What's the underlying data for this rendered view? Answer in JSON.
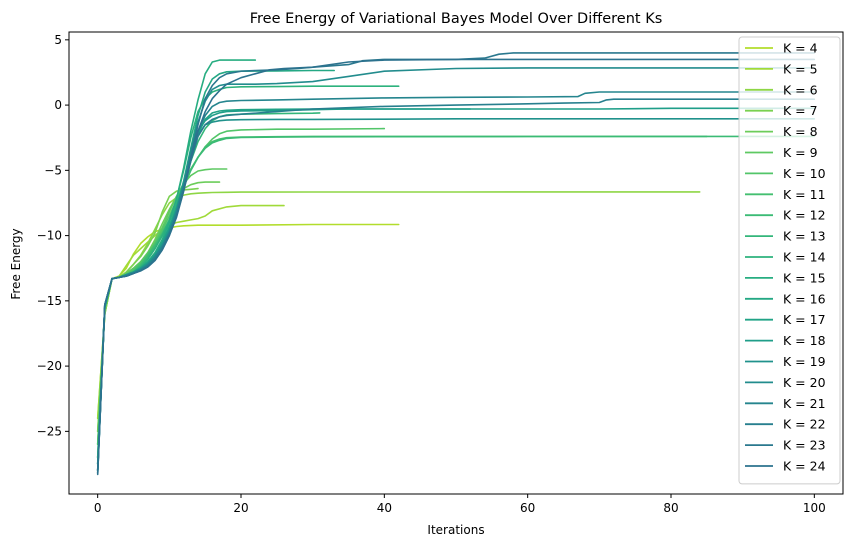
{
  "chart_data": {
    "type": "line",
    "title": "Free Energy of Variational Bayes Model Over Different Ks",
    "xlabel": "Iterations",
    "ylabel": "Free Energy",
    "xlim": [
      -4,
      104
    ],
    "ylim": [
      -29.8,
      5.6
    ],
    "xticks": [
      0,
      20,
      40,
      60,
      80,
      100
    ],
    "yticks": [
      5,
      0,
      -5,
      -10,
      -15,
      -20,
      -25
    ],
    "ytick_labels": [
      "5",
      "0",
      "−5",
      "−10",
      "−15",
      "−20",
      "−25"
    ],
    "grid": false,
    "legend_position": "top-right",
    "series": [
      {
        "name": "K = 4",
        "color": "#b2dd2c",
        "x": [
          0,
          1,
          2,
          3,
          4,
          5,
          6,
          7,
          8,
          9,
          10,
          11,
          12,
          14,
          16,
          20,
          30,
          42
        ],
        "y": [
          -24,
          -16,
          -13.3,
          -13.1,
          -12.5,
          -11.4,
          -10.6,
          -10.1,
          -9.7,
          -9.5,
          -9.4,
          -9.3,
          -9.25,
          -9.2,
          -9.2,
          -9.2,
          -9.15,
          -9.15
        ]
      },
      {
        "name": "K = 5",
        "color": "#a0da39",
        "x": [
          0,
          1,
          2,
          3,
          4,
          5,
          6,
          7,
          8,
          9,
          10,
          11,
          12,
          13,
          14,
          15,
          16,
          18,
          20,
          22,
          26
        ],
        "y": [
          -24,
          -16,
          -13.3,
          -13.1,
          -12.3,
          -11.5,
          -11,
          -10.5,
          -10,
          -9.5,
          -9.2,
          -9,
          -8.9,
          -8.8,
          -8.7,
          -8.5,
          -8.1,
          -7.8,
          -7.7,
          -7.7,
          -7.7
        ]
      },
      {
        "name": "K = 6",
        "color": "#8ed645",
        "x": [
          0,
          1,
          2,
          3,
          4,
          5,
          6,
          7,
          8,
          9,
          10,
          11,
          12,
          13,
          14,
          15,
          16,
          18,
          20,
          30,
          50,
          70,
          84
        ],
        "y": [
          -25,
          -16,
          -13.3,
          -13.2,
          -12.8,
          -12.2,
          -11.5,
          -10.6,
          -9.5,
          -8.4,
          -7.5,
          -7.1,
          -6.9,
          -6.8,
          -6.75,
          -6.72,
          -6.7,
          -6.68,
          -6.67,
          -6.66,
          -6.66,
          -6.65,
          -6.65
        ]
      },
      {
        "name": "K = 7",
        "color": "#7ad151",
        "x": [
          0,
          1,
          2,
          3,
          4,
          5,
          6,
          7,
          8,
          9,
          10,
          11,
          12,
          13,
          14
        ],
        "y": [
          -25,
          -16,
          -13.3,
          -13.2,
          -12.8,
          -12.2,
          -11.6,
          -10.8,
          -9.8,
          -8.2,
          -7,
          -6.6,
          -6.5,
          -6.45,
          -6.4
        ]
      },
      {
        "name": "K = 8",
        "color": "#6ccd5a",
        "x": [
          0,
          1,
          2,
          3,
          4,
          5,
          6,
          7,
          8,
          9,
          10,
          11,
          12,
          13,
          14,
          15,
          16,
          17
        ],
        "y": [
          -26,
          -15.5,
          -13.3,
          -13.2,
          -12.9,
          -12.5,
          -12,
          -11.3,
          -10.3,
          -9.1,
          -8,
          -7,
          -6.4,
          -6.1,
          -5.95,
          -5.9,
          -5.9,
          -5.9
        ]
      },
      {
        "name": "K = 9",
        "color": "#5ec962",
        "x": [
          0,
          1,
          2,
          3,
          4,
          5,
          6,
          7,
          8,
          9,
          10,
          11,
          12,
          13,
          14,
          15,
          16,
          17,
          18
        ],
        "y": [
          -26,
          -15.5,
          -13.3,
          -13.2,
          -12.9,
          -12.5,
          -12,
          -11.3,
          -10.5,
          -9.4,
          -8.2,
          -7,
          -6,
          -5.4,
          -5.05,
          -4.95,
          -4.9,
          -4.9,
          -4.9
        ]
      },
      {
        "name": "K = 10",
        "color": "#52c569",
        "x": [
          0,
          1,
          2,
          3,
          4,
          5,
          6,
          7,
          8,
          9,
          10,
          11,
          12,
          13,
          14,
          15,
          16,
          17,
          18,
          20,
          25,
          30,
          40
        ],
        "y": [
          -26,
          -15.5,
          -13.3,
          -13.2,
          -13,
          -12.6,
          -12.1,
          -11.4,
          -10.6,
          -9.6,
          -8.5,
          -7.3,
          -6,
          -4.9,
          -4,
          -3.2,
          -2.6,
          -2.2,
          -2,
          -1.9,
          -1.85,
          -1.85,
          -1.8
        ]
      },
      {
        "name": "K = 11",
        "color": "#44bf70",
        "x": [
          0,
          1,
          2,
          3,
          4,
          5,
          6,
          7,
          8,
          9,
          10,
          11,
          12,
          13,
          14,
          15,
          16,
          17,
          18,
          20,
          25,
          30,
          40,
          60,
          85
        ],
        "y": [
          -27,
          -15.5,
          -13.3,
          -13.2,
          -13,
          -12.7,
          -12.2,
          -11.5,
          -10.7,
          -9.8,
          -8.8,
          -7.6,
          -6.2,
          -5,
          -4,
          -3.2,
          -2.8,
          -2.6,
          -2.5,
          -2.45,
          -2.42,
          -2.4,
          -2.4,
          -2.4,
          -2.4
        ]
      },
      {
        "name": "K = 12",
        "color": "#3bbb75",
        "x": [
          0,
          1,
          2,
          3,
          4,
          5,
          6,
          7,
          8,
          9,
          10,
          11,
          12,
          13,
          14,
          15,
          16,
          17,
          18,
          20,
          25,
          30,
          40,
          60,
          80,
          100
        ],
        "y": [
          -27,
          -15.5,
          -13.3,
          -13.2,
          -13,
          -12.8,
          -12.3,
          -11.6,
          -10.8,
          -9.9,
          -8.9,
          -7.7,
          -6.3,
          -5,
          -4,
          -3.3,
          -2.9,
          -2.7,
          -2.55,
          -2.48,
          -2.45,
          -2.43,
          -2.42,
          -2.41,
          -2.4,
          -2.4
        ]
      },
      {
        "name": "K = 13",
        "color": "#33b67a",
        "x": [
          0,
          1,
          2,
          3,
          4,
          5,
          6,
          7,
          8,
          9,
          10,
          11,
          12,
          13,
          14,
          15,
          16,
          17,
          18,
          20,
          25,
          30,
          31
        ],
        "y": [
          -27,
          -15.5,
          -13.3,
          -13.2,
          -13,
          -12.8,
          -12.4,
          -11.8,
          -11,
          -10,
          -8.9,
          -7.6,
          -6,
          -4.3,
          -2.8,
          -1.8,
          -1.2,
          -0.9,
          -0.75,
          -0.7,
          -0.65,
          -0.62,
          -0.6
        ]
      },
      {
        "name": "K = 14",
        "color": "#2db27d",
        "x": [
          0,
          1,
          2,
          3,
          4,
          5,
          6,
          7,
          8,
          9,
          10,
          11,
          12,
          13,
          14,
          15,
          16,
          17,
          18,
          20,
          25,
          30,
          40,
          42
        ],
        "y": [
          -27.5,
          -15.5,
          -13.3,
          -13.2,
          -13,
          -12.8,
          -12.4,
          -11.8,
          -11,
          -10,
          -8.8,
          -7.2,
          -5,
          -2.5,
          -0.5,
          0.5,
          1,
          1.2,
          1.35,
          1.4,
          1.42,
          1.45,
          1.45,
          1.45
        ]
      },
      {
        "name": "K = 15",
        "color": "#27ad81",
        "x": [
          0,
          1,
          2,
          3,
          4,
          5,
          6,
          7,
          8,
          9,
          10,
          11,
          12,
          13,
          14,
          15,
          16,
          17,
          18,
          20,
          22
        ],
        "y": [
          -27.5,
          -15.5,
          -13.3,
          -13.2,
          -13,
          -12.8,
          -12.5,
          -12,
          -11.3,
          -10.3,
          -9,
          -7.2,
          -4.8,
          -2,
          0.4,
          2.4,
          3.3,
          3.45,
          3.45,
          3.45,
          3.45
        ]
      },
      {
        "name": "K = 16",
        "color": "#24a884",
        "x": [
          0,
          1,
          2,
          3,
          4,
          5,
          6,
          7,
          8,
          9,
          10,
          11,
          12,
          13,
          14,
          15,
          16,
          17,
          18,
          20,
          25,
          30,
          33
        ],
        "y": [
          -27.5,
          -15.5,
          -13.3,
          -13.2,
          -13,
          -12.8,
          -12.5,
          -12,
          -11.4,
          -10.5,
          -9.3,
          -7.8,
          -5.8,
          -3.3,
          -0.8,
          1,
          2,
          2.4,
          2.55,
          2.6,
          2.62,
          2.65,
          2.65
        ]
      },
      {
        "name": "K = 17",
        "color": "#21a386",
        "x": [
          0,
          1,
          2,
          3,
          4,
          5,
          6,
          7,
          8,
          9,
          10,
          11,
          12,
          13,
          14,
          15,
          16,
          17,
          18,
          20,
          25,
          30,
          40,
          52
        ],
        "y": [
          -28,
          -15.5,
          -13.3,
          -13.2,
          -13,
          -12.8,
          -12.5,
          -12.1,
          -11.5,
          -10.6,
          -9.4,
          -8,
          -6.1,
          -4,
          -2.2,
          -1.1,
          -0.6,
          -0.45,
          -0.4,
          -0.35,
          -0.32,
          -0.3,
          -0.3,
          -0.3
        ]
      },
      {
        "name": "K = 18",
        "color": "#1f9e89",
        "x": [
          0,
          1,
          2,
          3,
          4,
          5,
          6,
          7,
          8,
          9,
          10,
          11,
          12,
          13,
          14,
          15,
          16,
          17,
          18,
          20,
          25,
          30,
          35,
          40,
          50,
          60,
          70,
          80,
          90,
          100
        ],
        "y": [
          -28,
          -15.5,
          -13.3,
          -13.2,
          -13,
          -12.8,
          -12.5,
          -12.1,
          -11.5,
          -10.6,
          -9.5,
          -8,
          -6,
          -3.8,
          -2,
          -1.2,
          -0.8,
          -0.6,
          -0.5,
          -0.45,
          -0.42,
          -0.35,
          -0.3,
          -0.3,
          -0.3,
          -0.3,
          -0.3,
          -0.25,
          -0.25,
          -0.25
        ]
      },
      {
        "name": "K = 19",
        "color": "#20928c",
        "x": [
          0,
          1,
          2,
          3,
          4,
          5,
          6,
          7,
          8,
          9,
          10,
          11,
          12,
          13,
          14,
          15,
          16,
          17,
          18,
          20,
          25,
          30,
          40,
          50,
          60,
          70,
          80,
          90,
          100
        ],
        "y": [
          -28,
          -15.3,
          -13.3,
          -13.2,
          -13,
          -12.8,
          -12.6,
          -12.2,
          -11.6,
          -10.8,
          -9.7,
          -8.2,
          -6.2,
          -4,
          -2.3,
          -1.5,
          -1.3,
          -1.2,
          -1.15,
          -1.12,
          -1.1,
          -1.1,
          -1.08,
          -1.05,
          -1.05,
          -1.05,
          -1.05,
          -1.05,
          -1.05
        ]
      },
      {
        "name": "K = 20",
        "color": "#228c8d",
        "x": [
          0,
          1,
          2,
          3,
          4,
          5,
          6,
          7,
          8,
          9,
          10,
          11,
          12,
          13,
          14,
          15,
          16,
          17,
          18,
          20,
          22,
          25,
          30,
          35,
          40,
          50,
          60,
          70,
          80,
          90,
          100
        ],
        "y": [
          -28,
          -15.3,
          -13.3,
          -13.2,
          -13.1,
          -12.9,
          -12.6,
          -12.2,
          -11.6,
          -10.8,
          -9.7,
          -8.1,
          -6,
          -3.5,
          -1.3,
          0.3,
          1.2,
          1.5,
          1.6,
          1.6,
          1.6,
          1.65,
          1.8,
          2.2,
          2.6,
          2.8,
          2.85,
          2.85,
          2.85,
          2.85,
          2.85
        ]
      },
      {
        "name": "K = 21",
        "color": "#25858e",
        "x": [
          0,
          1,
          2,
          3,
          4,
          5,
          6,
          7,
          8,
          9,
          10,
          11,
          12,
          13,
          14,
          15,
          16,
          17,
          18,
          20,
          25,
          30,
          40,
          50,
          60,
          67,
          68,
          70,
          80,
          90,
          100
        ],
        "y": [
          -28,
          -15.3,
          -13.3,
          -13.2,
          -13.1,
          -12.9,
          -12.6,
          -12.3,
          -11.7,
          -10.9,
          -9.8,
          -8.3,
          -6.3,
          -4,
          -2,
          -0.8,
          -0.1,
          0.2,
          0.3,
          0.35,
          0.4,
          0.45,
          0.55,
          0.6,
          0.62,
          0.65,
          0.9,
          1,
          1,
          1,
          1
        ]
      },
      {
        "name": "K = 22",
        "color": "#277f8e",
        "x": [
          0,
          1,
          2,
          3,
          4,
          5,
          6,
          7,
          8,
          9,
          10,
          11,
          12,
          13,
          14,
          15,
          16,
          17,
          18,
          20,
          25,
          30,
          40,
          50,
          60,
          65,
          70,
          71,
          72,
          80,
          90,
          100
        ],
        "y": [
          -28.2,
          -15.3,
          -13.3,
          -13.2,
          -13.1,
          -12.9,
          -12.7,
          -12.3,
          -11.8,
          -11,
          -9.9,
          -8.5,
          -6.5,
          -4.3,
          -2.4,
          -1.5,
          -1.1,
          -0.9,
          -0.8,
          -0.7,
          -0.5,
          -0.3,
          -0.1,
          0,
          0.1,
          0.15,
          0.2,
          0.4,
          0.45,
          0.45,
          0.45,
          0.45
        ]
      },
      {
        "name": "K = 23",
        "color": "#2a788e",
        "x": [
          0,
          1,
          2,
          3,
          4,
          5,
          6,
          7,
          8,
          9,
          10,
          11,
          12,
          13,
          14,
          15,
          16,
          17,
          18,
          20,
          22,
          25,
          28,
          30,
          35,
          37,
          40,
          50,
          54,
          56,
          58,
          60,
          70,
          80,
          90,
          100
        ],
        "y": [
          -28.2,
          -15.3,
          -13.3,
          -13.2,
          -13.1,
          -12.9,
          -12.7,
          -12.4,
          -11.9,
          -11.1,
          -10,
          -8.5,
          -6.5,
          -4,
          -1.5,
          0.5,
          1.5,
          2.1,
          2.4,
          2.6,
          2.65,
          2.7,
          2.8,
          2.9,
          3.1,
          3.4,
          3.5,
          3.5,
          3.6,
          3.9,
          4,
          4,
          4,
          4,
          4,
          4
        ]
      },
      {
        "name": "K = 24",
        "color": "#2c728e",
        "x": [
          0,
          1,
          2,
          3,
          4,
          5,
          6,
          7,
          8,
          9,
          10,
          11,
          12,
          13,
          14,
          15,
          16,
          17,
          18,
          20,
          24,
          26,
          30,
          35,
          40,
          50,
          60,
          70,
          80,
          90,
          100
        ],
        "y": [
          -28.3,
          -15.3,
          -13.3,
          -13.2,
          -13.1,
          -12.9,
          -12.7,
          -12.4,
          -11.9,
          -11.1,
          -10,
          -8.6,
          -6.6,
          -4.2,
          -2,
          -0.5,
          0.5,
          1.1,
          1.6,
          2.1,
          2.7,
          2.8,
          2.9,
          3.3,
          3.45,
          3.5,
          3.5,
          3.5,
          3.5,
          3.5,
          3.5
        ]
      }
    ]
  }
}
